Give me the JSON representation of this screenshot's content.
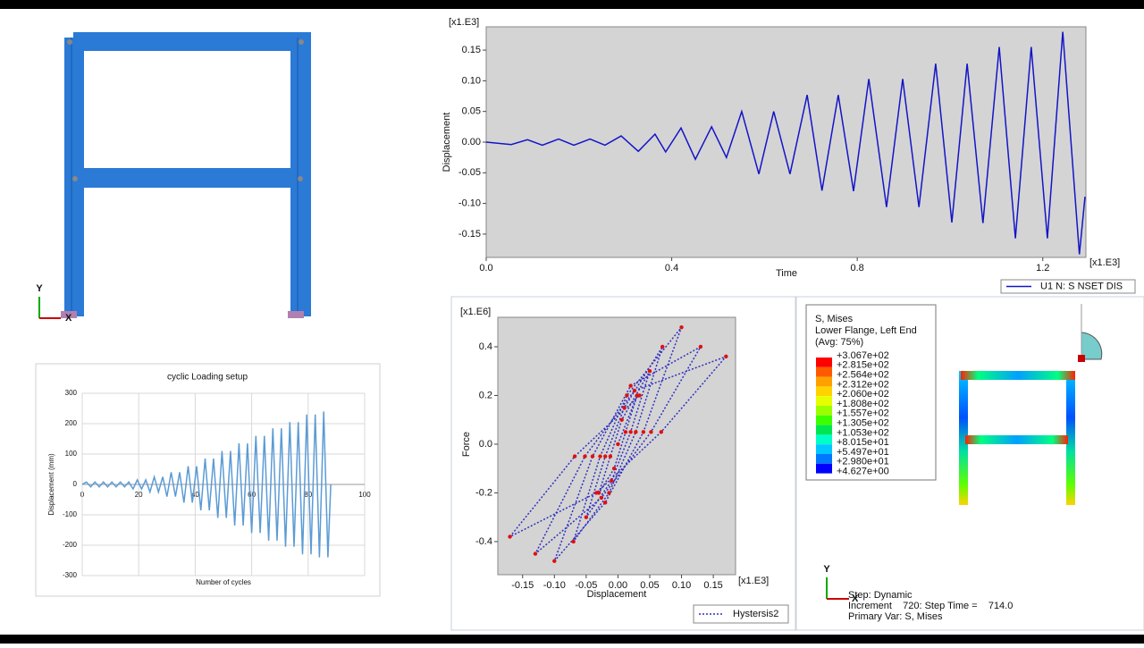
{
  "chart_data": [
    {
      "type": "line",
      "title": "cyclic Loading setup",
      "x_label": "Number of cycles",
      "y_label": "Displacement (mm)",
      "x": [
        0,
        1.5,
        3,
        4.5,
        6,
        7.5,
        9,
        10.5,
        12,
        13.5,
        15,
        16.5,
        18,
        19.5,
        21,
        22.5,
        24,
        25.5,
        27,
        28.5,
        30,
        31.5,
        33,
        34.5,
        36,
        37.5,
        39,
        40.5,
        42,
        43.5,
        45,
        46.5,
        48,
        49.5,
        51,
        52.5,
        54,
        55.5,
        57,
        58.5,
        60,
        61.5,
        63,
        64.5,
        66,
        67.5,
        69,
        70.5,
        72,
        73.5,
        75,
        76.5,
        78,
        79.5,
        81,
        82.5,
        84,
        85.5,
        87,
        88
      ],
      "series": [
        {
          "color": "#5b9bd5",
          "values": [
            0,
            8,
            -8,
            8,
            -8,
            8,
            -8,
            8,
            -8,
            8,
            -8,
            8,
            -15,
            15,
            -15,
            15,
            -25,
            25,
            -25,
            25,
            -40,
            40,
            -40,
            40,
            -60,
            60,
            -60,
            60,
            -85,
            85,
            -85,
            85,
            -110,
            110,
            -110,
            110,
            -135,
            135,
            -135,
            135,
            -160,
            160,
            -160,
            160,
            -185,
            185,
            -185,
            185,
            -205,
            205,
            -205,
            205,
            -230,
            230,
            -230,
            230,
            -240,
            240,
            -240,
            0
          ]
        }
      ],
      "xlim": [
        0,
        100
      ],
      "xticks": [
        0,
        20,
        40,
        60,
        80,
        100
      ],
      "ylim": [
        -300,
        300
      ],
      "yticks": [
        -300,
        -200,
        -100,
        0,
        100,
        200,
        300
      ],
      "grid": true
    },
    {
      "type": "line",
      "x_label": "Time",
      "y_label": "Displacement",
      "x_multiplier": "[x1.E3]",
      "y_multiplier": "[x1.E3]",
      "x": [
        0,
        0.054,
        0.089,
        0.121,
        0.156,
        0.189,
        0.224,
        0.256,
        0.291,
        0.328,
        0.364,
        0.387,
        0.42,
        0.451,
        0.486,
        0.518,
        0.551,
        0.588,
        0.62,
        0.655,
        0.692,
        0.724,
        0.759,
        0.792,
        0.825,
        0.863,
        0.898,
        0.933,
        0.969,
        1.004,
        1.037,
        1.071,
        1.106,
        1.141,
        1.175,
        1.21,
        1.243,
        1.279,
        1.291
      ],
      "series": [
        {
          "name": "U1 N: S NSET DIS",
          "color": "#1414c8",
          "values": [
            0,
            -0.004,
            0.004,
            -0.005,
            0.005,
            -0.005,
            0.005,
            -0.005,
            0.01,
            -0.015,
            0.013,
            -0.016,
            0.023,
            -0.028,
            0.025,
            -0.025,
            0.05,
            -0.052,
            0.05,
            -0.052,
            0.077,
            -0.079,
            0.077,
            -0.08,
            0.103,
            -0.106,
            0.103,
            -0.106,
            0.128,
            -0.131,
            0.128,
            -0.132,
            0.155,
            -0.157,
            0.155,
            -0.157,
            0.18,
            -0.183,
            -0.089
          ]
        }
      ],
      "xlim": [
        0,
        1.293
      ],
      "xticks": [
        {
          "value": 0,
          "label": "0.0"
        },
        0.4,
        0.8,
        1.2
      ],
      "ylim": [
        -0.188,
        0.188
      ],
      "yticks": [
        -0.15,
        {
          "value": -0.1,
          "label": "-0.10"
        },
        -0.05,
        {
          "value": 0,
          "label": "0.00"
        },
        0.05,
        {
          "value": 0.1,
          "label": "0.10"
        },
        0.15
      ],
      "grid": false,
      "plot_background": "#d4d4d4",
      "legend": "bottom-right"
    },
    {
      "type": "line",
      "x_label": "Displacement",
      "y_label": "Force",
      "x_multiplier": "[x1.E3]",
      "y_multiplier": "[x1.E6]",
      "x": [
        0,
        0.03,
        0.012,
        -0.006,
        -0.03,
        -0.012,
        0.006,
        0.05,
        0.02,
        -0.01,
        -0.05,
        -0.02,
        0.01,
        0.07,
        0.028,
        -0.014,
        -0.07,
        -0.028,
        0.014,
        0.1,
        0.04,
        -0.02,
        -0.1,
        -0.04,
        0.02,
        0.13,
        0.052,
        -0.026,
        -0.13,
        -0.052,
        0.026,
        0.17,
        0.068,
        -0.034,
        -0.17,
        -0.068,
        0.034
      ],
      "series": [
        {
          "name": "Hystersis2",
          "color": "#3030c0",
          "marker_color": "#e01010",
          "values": [
            0,
            0.2,
            0.05,
            -0.1,
            -0.2,
            -0.05,
            0.1,
            0.3,
            0.05,
            -0.15,
            -0.3,
            -0.05,
            0.15,
            0.4,
            0.05,
            -0.2,
            -0.4,
            -0.05,
            0.2,
            0.48,
            0.05,
            -0.24,
            -0.48,
            -0.05,
            0.24,
            0.4,
            0.05,
            -0.22,
            -0.45,
            -0.05,
            0.22,
            0.36,
            0.05,
            -0.2,
            -0.38,
            -0.05,
            0.2
          ]
        }
      ],
      "xlim": [
        -0.189,
        0.185
      ],
      "xticks": [
        -0.15,
        {
          "value": -0.1,
          "label": "-0.10"
        },
        -0.05,
        {
          "value": 0,
          "label": "0.00"
        },
        0.05,
        {
          "value": 0.1,
          "label": "0.10"
        },
        0.15
      ],
      "ylim": [
        -0.536,
        0.521
      ],
      "yticks": [
        -0.4,
        -0.2,
        {
          "value": 0,
          "label": "0.0"
        },
        0.2,
        0.4
      ],
      "grid": false,
      "plot_background": "#d4d4d4",
      "markers": true,
      "legend": "bottom-right"
    }
  ],
  "contour_legend": {
    "title": [
      "S, Mises",
      "Lower Flange, Left End",
      "(Avg: 75%)"
    ],
    "labels": [
      "+3.067e+02",
      "+2.815e+02",
      "+2.564e+02",
      "+2.312e+02",
      "+2.060e+02",
      "+1.808e+02",
      "+1.557e+02",
      "+1.305e+02",
      "+1.053e+02",
      "+8.015e+01",
      "+5.497e+01",
      "+2.980e+01",
      "+4.627e+00"
    ],
    "colors": [
      "#ff0000",
      "#ff5a00",
      "#ffa000",
      "#ffd200",
      "#e6ff00",
      "#9cff00",
      "#3cff00",
      "#00e650",
      "#00ffc8",
      "#00c8ff",
      "#0078ff",
      "#0000ff"
    ]
  },
  "viewport": {
    "triad": [
      "Y",
      "X"
    ],
    "status": [
      "Step: Dynamic",
      "Increment    720: Step Time =    714.0",
      "Primary Var: S, Mises"
    ]
  },
  "model_view": {
    "triad": [
      "Y",
      "X"
    ]
  }
}
